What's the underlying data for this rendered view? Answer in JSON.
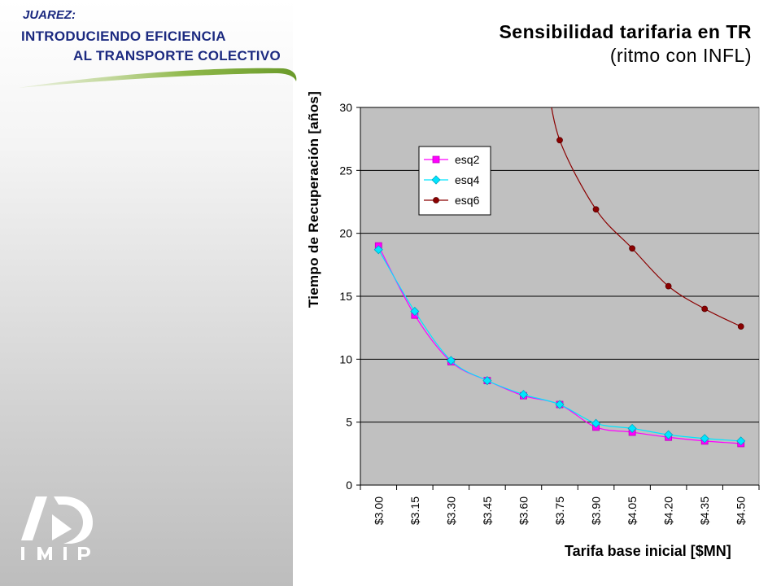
{
  "header": {
    "line1": "JUAREZ:",
    "line2": "INTRODUCIENDO EFICIENCIA",
    "line3": "AL TRANSPORTE COLECTIVO"
  },
  "logo": {
    "text": "I M I P"
  },
  "colors": {
    "header_text": "#1c2a80",
    "plot_bg": "#c0c0c0",
    "esq2": "#ff00ff",
    "esq4": "#00e5ff",
    "esq6": "#8b0000"
  },
  "chart_data": {
    "type": "line",
    "title": "Sensibilidad tarifaria en TR",
    "subtitle": "(ritmo con INFL)",
    "xlabel": "Tarifa base inicial [$MN]",
    "ylabel": "Tiempo de Recuperación [años]",
    "categories": [
      "$3.00",
      "$3.15",
      "$3.30",
      "$3.45",
      "$3.60",
      "$3.75",
      "$3.90",
      "$4.05",
      "$4.20",
      "$4.35",
      "$4.50"
    ],
    "ylim": [
      0,
      30
    ],
    "yticks": [
      0,
      5,
      10,
      15,
      20,
      25,
      30
    ],
    "grid": true,
    "legend_position": "top-left",
    "series": [
      {
        "name": "esq2",
        "marker": "square",
        "values": [
          19.0,
          13.5,
          9.8,
          8.3,
          7.1,
          6.4,
          4.6,
          4.2,
          3.8,
          3.5,
          3.3
        ]
      },
      {
        "name": "esq4",
        "marker": "diamond",
        "values": [
          18.7,
          13.8,
          9.9,
          8.3,
          7.2,
          6.4,
          4.9,
          4.5,
          4.0,
          3.7,
          3.5
        ]
      },
      {
        "name": "esq6",
        "marker": "circle",
        "values": [
          null,
          null,
          null,
          null,
          null,
          27.4,
          21.9,
          18.8,
          15.8,
          14.0,
          12.6
        ]
      }
    ]
  }
}
